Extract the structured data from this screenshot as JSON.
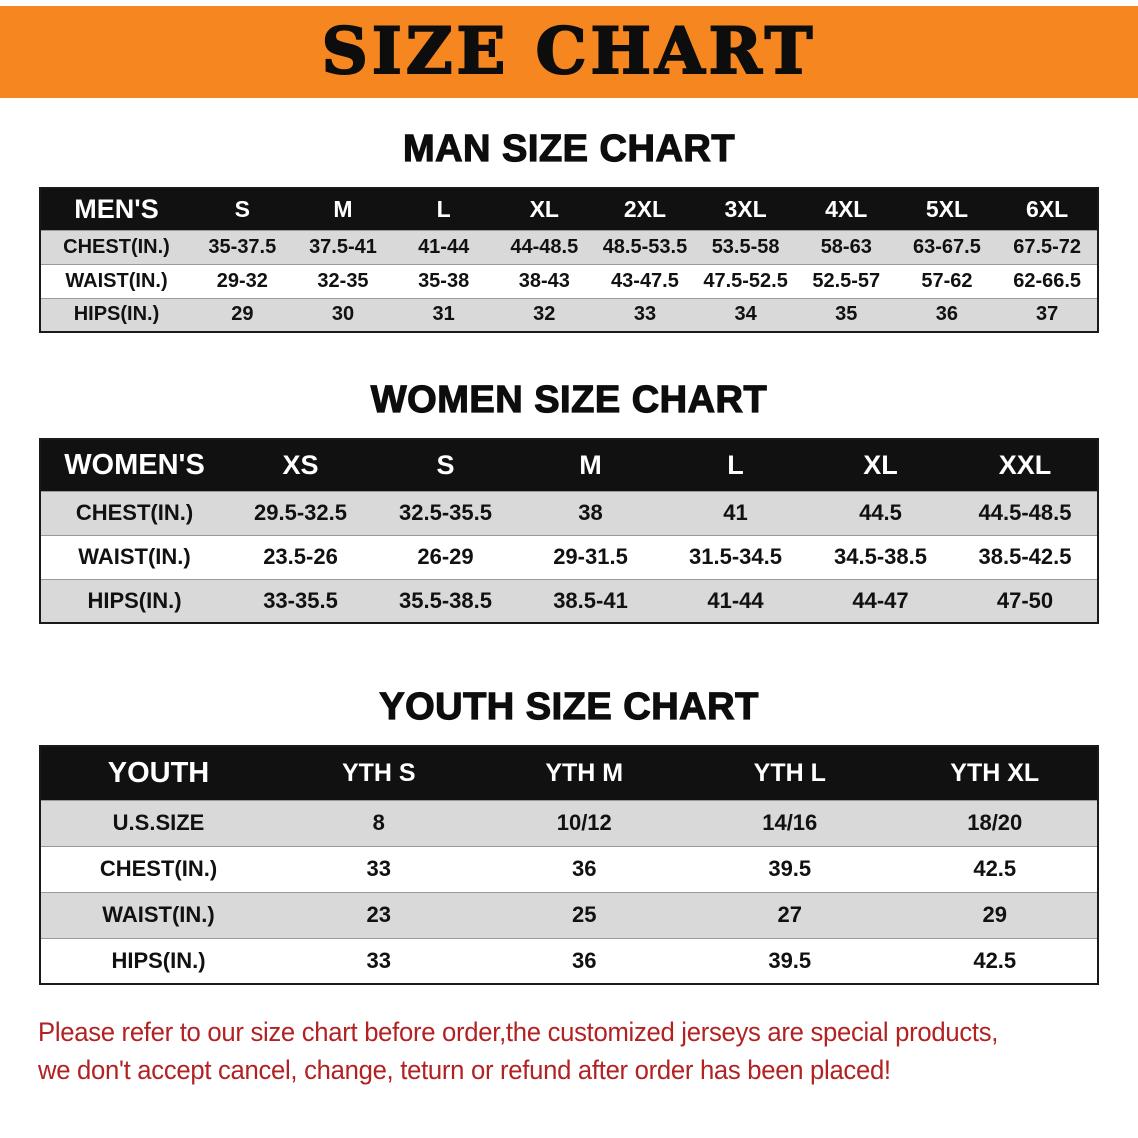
{
  "banner": {
    "title": "SIZE CHART"
  },
  "colors": {
    "banner_bg": "#f6861f",
    "header_bg": "#111111",
    "stripe": "#d9d9d9",
    "note_color": "#b22222"
  },
  "men": {
    "heading": "MAN SIZE CHART",
    "header": [
      "MEN'S",
      "S",
      "M",
      "L",
      "XL",
      "2XL",
      "3XL",
      "4XL",
      "5XL",
      "6XL"
    ],
    "rows": [
      [
        "CHEST(IN.)",
        "35-37.5",
        "37.5-41",
        "41-44",
        "44-48.5",
        "48.5-53.5",
        "53.5-58",
        "58-63",
        "63-67.5",
        "67.5-72"
      ],
      [
        "WAIST(IN.)",
        "29-32",
        "32-35",
        "35-38",
        "38-43",
        "43-47.5",
        "47.5-52.5",
        "52.5-57",
        "57-62",
        "62-66.5"
      ],
      [
        "HIPS(IN.)",
        "29",
        "30",
        "31",
        "32",
        "33",
        "34",
        "35",
        "36",
        "37"
      ]
    ]
  },
  "women": {
    "heading": "WOMEN SIZE CHART",
    "header": [
      "WOMEN'S",
      "XS",
      "S",
      "M",
      "L",
      "XL",
      "XXL"
    ],
    "rows": [
      [
        "CHEST(IN.)",
        "29.5-32.5",
        "32.5-35.5",
        "38",
        "41",
        "44.5",
        "44.5-48.5"
      ],
      [
        "WAIST(IN.)",
        "23.5-26",
        "26-29",
        "29-31.5",
        "31.5-34.5",
        "34.5-38.5",
        "38.5-42.5"
      ],
      [
        "HIPS(IN.)",
        "33-35.5",
        "35.5-38.5",
        "38.5-41",
        "41-44",
        "44-47",
        "47-50"
      ]
    ]
  },
  "youth": {
    "heading": "YOUTH SIZE CHART",
    "header": [
      "YOUTH",
      "YTH S",
      "YTH M",
      "YTH L",
      "YTH XL"
    ],
    "rows": [
      [
        "U.S.SIZE",
        "8",
        "10/12",
        "14/16",
        "18/20"
      ],
      [
        "CHEST(IN.)",
        "33",
        "36",
        "39.5",
        "42.5"
      ],
      [
        "WAIST(IN.)",
        "23",
        "25",
        "27",
        "29"
      ],
      [
        "HIPS(IN.)",
        "33",
        "36",
        "39.5",
        "42.5"
      ]
    ]
  },
  "note": {
    "line1": "Please refer to our size chart before order,the customized jerseys are special products,",
    "line2": "we don't accept cancel, change, teturn or refund after order has been placed!"
  }
}
